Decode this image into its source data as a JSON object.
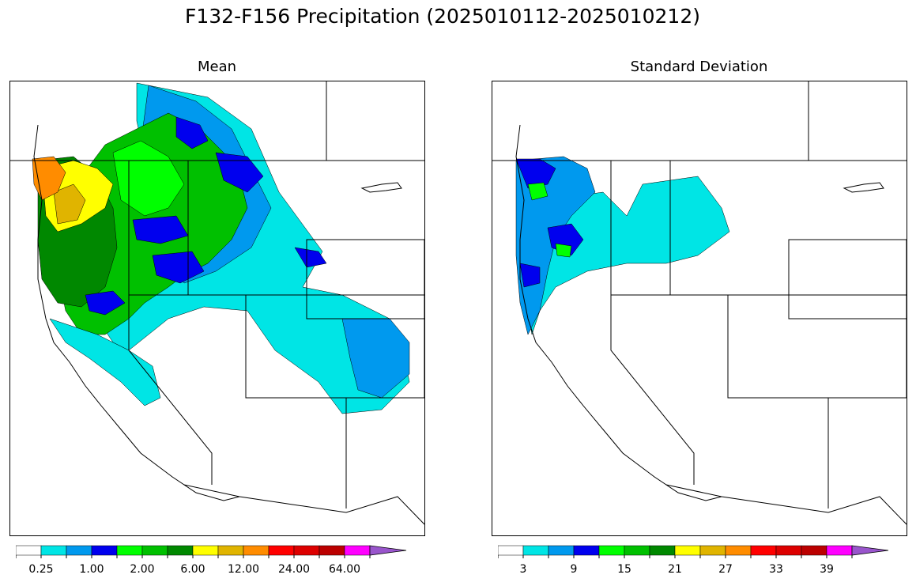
{
  "figure": {
    "title": "F132-F156 Precipitation (2025010112-2025010212)"
  },
  "panels": [
    {
      "title": "Mean"
    },
    {
      "title": "Standard Deviation"
    }
  ],
  "colors": {
    "scale": [
      "#ffffff",
      "#00e5e5",
      "#0099ee",
      "#0000ee",
      "#00ff00",
      "#00c000",
      "#008800",
      "#ffff00",
      "#e0b400",
      "#ff8c00",
      "#ff0000",
      "#dd0000",
      "#bb0000",
      "#ff00ff",
      "#9955cc"
    ],
    "boundary": "#000000"
  },
  "colorbars": [
    {
      "ticks": [
        "0.25",
        "1.00",
        "2.00",
        "6.00",
        "12.00",
        "24.00",
        "64.00"
      ],
      "extend": "max"
    },
    {
      "ticks": [
        "3",
        "9",
        "15",
        "21",
        "27",
        "33",
        "39"
      ],
      "extend": "max"
    }
  ]
}
